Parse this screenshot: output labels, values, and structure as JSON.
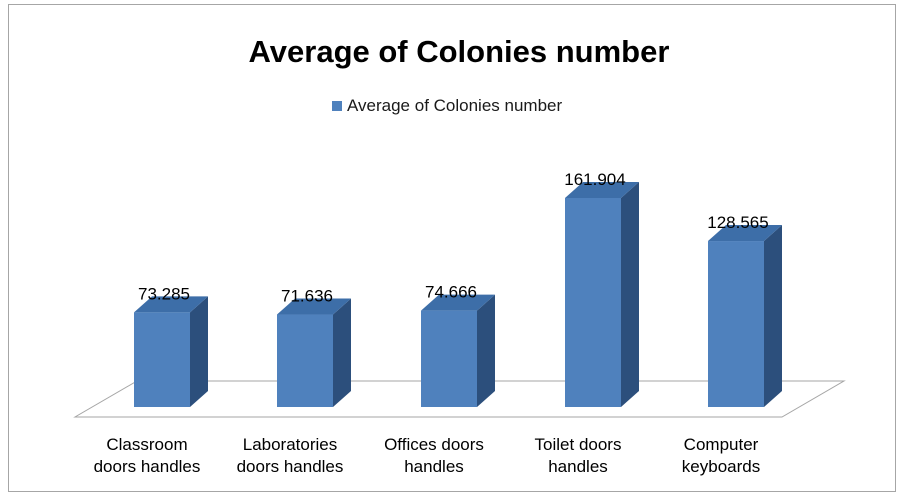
{
  "chart_data": {
    "type": "bar",
    "title": "Average of Colonies number",
    "legend": {
      "position": "top",
      "entries": [
        "Average of Colonies number"
      ]
    },
    "categories": [
      [
        "Classroom",
        "doors handles"
      ],
      [
        "Laboratories",
        "doors handles"
      ],
      [
        "Offices doors",
        "handles"
      ],
      [
        "Toilet doors",
        "handles"
      ],
      [
        "Computer",
        "keyboards"
      ]
    ],
    "series": [
      {
        "name": "Average of Colonies number",
        "values": [
          73.285,
          71.636,
          74.666,
          161.904,
          128.565
        ],
        "data_labels": [
          "73.285",
          "71.636",
          "74.666",
          "161.904",
          "128.565"
        ]
      }
    ],
    "ylim": [
      0,
      180
    ],
    "grid": false,
    "style": "3d-column",
    "colors": {
      "front": "#4f81bd",
      "top": "#3d6ea8",
      "side": "#2c4f7c",
      "floor_edge": "#a6a6a6"
    }
  }
}
